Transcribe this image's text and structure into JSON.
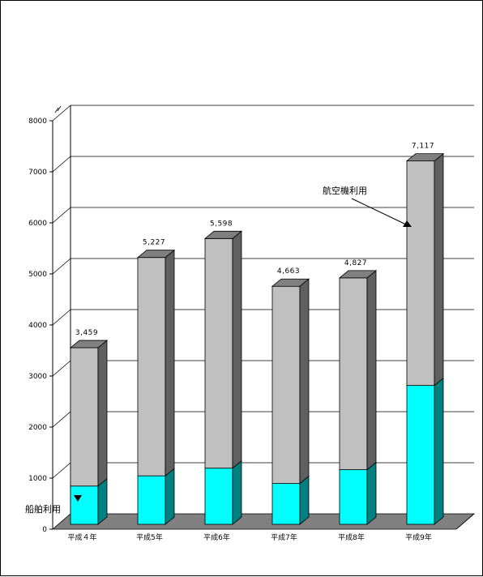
{
  "chart_data": {
    "type": "bar",
    "stacked": true,
    "three_d": true,
    "categories": [
      "平成４年",
      "平成5年",
      "平成6年",
      "平成7年",
      "平成8年",
      "平成9年"
    ],
    "series": [
      {
        "name": "船舶利用",
        "values": [
          750,
          950,
          1100,
          800,
          1070,
          2720
        ]
      },
      {
        "name": "航空機利用",
        "values": [
          2709,
          4277,
          4498,
          3863,
          3757,
          4397
        ]
      }
    ],
    "totals": [
      3459,
      5227,
      5598,
      4663,
      4827,
      7117
    ],
    "total_labels": [
      "3,459",
      "5,227",
      "5,598",
      "4,663",
      "4,827",
      "7,117"
    ],
    "yticks": [
      "0",
      "1000",
      "2000",
      "3000",
      "4000",
      "5000",
      "6000",
      "7000",
      "8000"
    ],
    "ylim": [
      0,
      8000
    ],
    "grid": true,
    "legend": "annotations with arrows",
    "colors": {
      "ship_front": "#00ffff",
      "ship_side": "#008080",
      "air_front": "#c0c0c0",
      "air_side": "#606060",
      "air_top": "#808080",
      "floor": "#808080",
      "grid": "#000000"
    }
  },
  "annotations": {
    "air_label": "航空機利用",
    "ship_label": "船舶利用"
  }
}
